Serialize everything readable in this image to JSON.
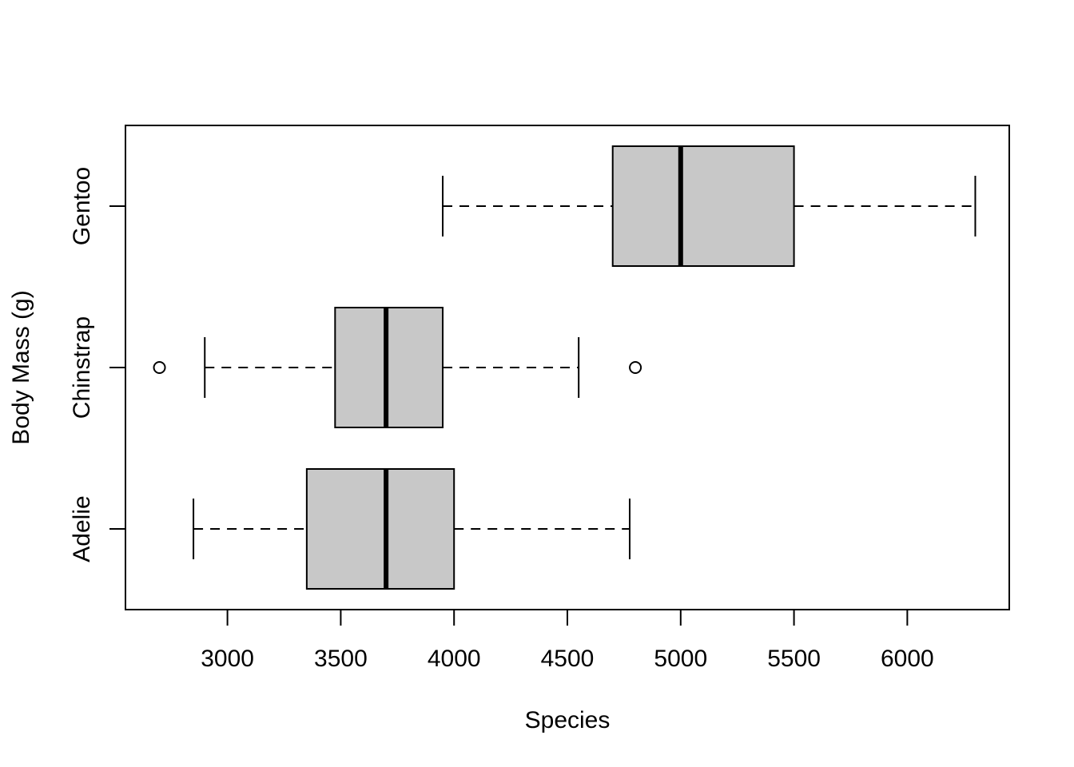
{
  "chart_data": {
    "type": "boxplot",
    "orientation": "horizontal",
    "title": "",
    "xlabel": "Species",
    "ylabel": "Body Mass (g)",
    "xlim": [
      2550,
      6450
    ],
    "xticks": [
      3000,
      3500,
      4000,
      4500,
      5000,
      5500,
      6000
    ],
    "xtick_labels": [
      "3000",
      "3500",
      "4000",
      "4500",
      "5000",
      "5500",
      "6000"
    ],
    "categories": [
      "Adelie",
      "Chinstrap",
      "Gentoo"
    ],
    "boxes": [
      {
        "label": "Adelie",
        "whisker_low": 2850,
        "q1": 3350,
        "median": 3700,
        "q3": 4000,
        "whisker_high": 4775,
        "outliers": []
      },
      {
        "label": "Chinstrap",
        "whisker_low": 2900,
        "q1": 3475,
        "median": 3700,
        "q3": 3950,
        "whisker_high": 4550,
        "outliers": [
          2700,
          4800
        ]
      },
      {
        "label": "Gentoo",
        "whisker_low": 3950,
        "q1": 4700,
        "median": 5000,
        "q3": 5500,
        "whisker_high": 6300,
        "outliers": []
      }
    ],
    "box_fill": "#c8c8c8",
    "grid": false,
    "legend": "none"
  }
}
